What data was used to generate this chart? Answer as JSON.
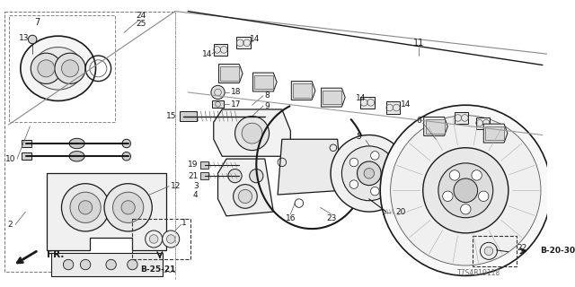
{
  "bg_color": "#ffffff",
  "fg_color": "#1a1a1a",
  "diagram_id": "T7S4B19118",
  "ref_b2030": "B-20-30",
  "ref_b2521": "B-25-21"
}
